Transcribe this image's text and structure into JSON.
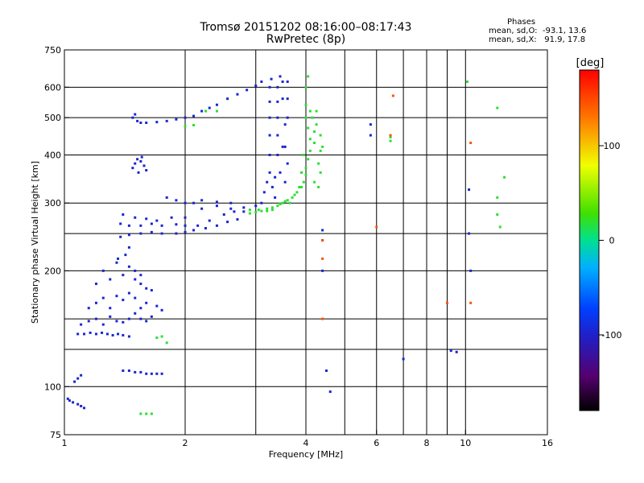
{
  "title": "Tromsø 20151202 08:16:00–08:17:43",
  "subtitle": "RwPretec (8p)",
  "stats": {
    "heading": "Phases",
    "line1": "mean, sd,O:  -93.1, 13.6",
    "line2": "mean, sd,X:   91.9, 17.8"
  },
  "chart_data": {
    "type": "scatter",
    "xlabel": "Frequency [MHz]",
    "ylabel": "Stationary phase Virtual Height [km]",
    "x_scale": "log",
    "y_scale": "log",
    "xlim": [
      1,
      16
    ],
    "ylim": [
      75,
      750
    ],
    "x_ticks": [
      {
        "value": 1,
        "label": "1"
      },
      {
        "value": 2,
        "label": "2"
      },
      {
        "value": 4,
        "label": "4"
      },
      {
        "value": 6,
        "label": "6"
      },
      {
        "value": 8,
        "label": "8"
      },
      {
        "value": 10,
        "label": "10"
      },
      {
        "value": 16,
        "label": "16"
      }
    ],
    "x_grid": [
      2,
      3,
      4,
      5,
      6,
      7,
      8,
      9,
      10
    ],
    "y_ticks": [
      {
        "value": 75,
        "label": "75"
      },
      {
        "value": 100,
        "label": "100"
      },
      {
        "value": 200,
        "label": "200"
      },
      {
        "value": 300,
        "label": "300"
      },
      {
        "value": 400,
        "label": "400"
      },
      {
        "value": 500,
        "label": "500"
      },
      {
        "value": 600,
        "label": "600"
      },
      {
        "value": 750,
        "label": "750"
      }
    ],
    "y_grid": [
      100,
      125,
      150,
      200,
      250,
      300,
      400,
      500,
      600
    ],
    "colorbar": {
      "label": "[deg]",
      "range": [
        -180,
        180
      ],
      "ticks": [
        {
          "value": 100,
          "label": "100"
        },
        {
          "value": 0,
          "label": "0"
        },
        {
          "value": -100,
          "label": "-100"
        }
      ]
    },
    "series": [
      {
        "phase": -95,
        "points": [
          [
            1.02,
            93
          ],
          [
            1.03,
            92
          ],
          [
            1.05,
            91
          ],
          [
            1.08,
            90
          ],
          [
            1.1,
            89
          ],
          [
            1.12,
            88
          ],
          [
            1.06,
            103
          ],
          [
            1.08,
            105
          ],
          [
            1.1,
            107
          ],
          [
            1.08,
            137
          ],
          [
            1.12,
            137
          ],
          [
            1.16,
            138
          ],
          [
            1.2,
            137
          ],
          [
            1.24,
            138
          ],
          [
            1.28,
            137
          ],
          [
            1.32,
            136
          ],
          [
            1.36,
            137
          ],
          [
            1.4,
            136
          ],
          [
            1.45,
            135
          ],
          [
            1.1,
            145
          ],
          [
            1.15,
            148
          ],
          [
            1.2,
            150
          ],
          [
            1.25,
            145
          ],
          [
            1.3,
            152
          ],
          [
            1.35,
            148
          ],
          [
            1.4,
            147
          ],
          [
            1.45,
            150
          ],
          [
            1.5,
            155
          ],
          [
            1.55,
            150
          ],
          [
            1.6,
            148
          ],
          [
            1.65,
            152
          ],
          [
            1.15,
            160
          ],
          [
            1.2,
            165
          ],
          [
            1.25,
            170
          ],
          [
            1.3,
            160
          ],
          [
            1.35,
            172
          ],
          [
            1.4,
            168
          ],
          [
            1.45,
            175
          ],
          [
            1.5,
            170
          ],
          [
            1.55,
            160
          ],
          [
            1.6,
            165
          ],
          [
            1.7,
            162
          ],
          [
            1.75,
            158
          ],
          [
            1.2,
            185
          ],
          [
            1.25,
            200
          ],
          [
            1.3,
            190
          ],
          [
            1.35,
            210
          ],
          [
            1.4,
            195
          ],
          [
            1.45,
            205
          ],
          [
            1.5,
            190
          ],
          [
            1.55,
            185
          ],
          [
            1.6,
            180
          ],
          [
            1.65,
            178
          ],
          [
            1.36,
            215
          ],
          [
            1.42,
            220
          ],
          [
            1.45,
            230
          ],
          [
            1.5,
            200
          ],
          [
            1.55,
            195
          ],
          [
            1.4,
            110
          ],
          [
            1.45,
            110
          ],
          [
            1.5,
            109
          ],
          [
            1.55,
            109
          ],
          [
            1.6,
            108
          ],
          [
            1.65,
            108
          ],
          [
            1.7,
            108
          ],
          [
            1.75,
            108
          ],
          [
            1.48,
            370
          ],
          [
            1.5,
            380
          ],
          [
            1.52,
            390
          ],
          [
            1.55,
            385
          ],
          [
            1.58,
            375
          ],
          [
            1.6,
            365
          ],
          [
            1.53,
            360
          ],
          [
            1.56,
            395
          ],
          [
            1.48,
            500
          ],
          [
            1.5,
            510
          ],
          [
            1.52,
            490
          ],
          [
            1.55,
            485
          ],
          [
            1.6,
            485
          ],
          [
            1.7,
            487
          ],
          [
            1.8,
            490
          ],
          [
            1.9,
            495
          ],
          [
            2.0,
            500
          ],
          [
            2.1,
            505
          ],
          [
            2.2,
            520
          ],
          [
            2.3,
            530
          ],
          [
            2.4,
            540
          ],
          [
            2.55,
            560
          ],
          [
            2.7,
            575
          ],
          [
            2.85,
            590
          ],
          [
            3.0,
            605
          ],
          [
            3.1,
            620
          ],
          [
            1.38,
            245
          ],
          [
            1.45,
            248
          ],
          [
            1.55,
            250
          ],
          [
            1.65,
            252
          ],
          [
            1.75,
            250
          ],
          [
            1.9,
            250
          ],
          [
            2.0,
            252
          ],
          [
            2.1,
            255
          ],
          [
            2.25,
            258
          ],
          [
            2.4,
            262
          ],
          [
            2.55,
            268
          ],
          [
            2.7,
            272
          ],
          [
            1.38,
            265
          ],
          [
            1.45,
            262
          ],
          [
            1.55,
            262
          ],
          [
            1.65,
            265
          ],
          [
            1.75,
            262
          ],
          [
            1.9,
            264
          ],
          [
            2.0,
            262
          ],
          [
            2.15,
            262
          ],
          [
            2.3,
            270
          ],
          [
            2.5,
            280
          ],
          [
            2.65,
            285
          ],
          [
            1.4,
            280
          ],
          [
            1.5,
            275
          ],
          [
            1.6,
            273
          ],
          [
            1.7,
            270
          ],
          [
            1.85,
            275
          ],
          [
            2.0,
            275
          ],
          [
            2.2,
            290
          ],
          [
            2.4,
            295
          ],
          [
            2.6,
            290
          ],
          [
            2.8,
            285
          ],
          [
            1.8,
            310
          ],
          [
            1.9,
            305
          ],
          [
            2.0,
            300
          ],
          [
            2.1,
            300
          ],
          [
            2.2,
            305
          ],
          [
            2.4,
            302
          ],
          [
            2.6,
            300
          ],
          [
            2.8,
            292
          ],
          [
            3.0,
            295
          ],
          [
            3.1,
            300
          ],
          [
            3.15,
            320
          ],
          [
            3.2,
            340
          ],
          [
            3.25,
            360
          ],
          [
            3.25,
            400
          ],
          [
            3.25,
            450
          ],
          [
            3.25,
            500
          ],
          [
            3.25,
            550
          ],
          [
            3.25,
            600
          ],
          [
            3.28,
            630
          ],
          [
            3.35,
            310
          ],
          [
            3.35,
            350
          ],
          [
            3.4,
            400
          ],
          [
            3.4,
            450
          ],
          [
            3.4,
            500
          ],
          [
            3.4,
            550
          ],
          [
            3.4,
            600
          ],
          [
            3.45,
            640
          ],
          [
            3.5,
            620
          ],
          [
            3.5,
            560
          ],
          [
            3.55,
            480
          ],
          [
            3.55,
            420
          ],
          [
            3.6,
            380
          ],
          [
            3.55,
            340
          ],
          [
            3.6,
            620
          ],
          [
            3.6,
            560
          ],
          [
            3.6,
            500
          ],
          [
            3.5,
            420
          ],
          [
            3.45,
            360
          ],
          [
            3.3,
            330
          ],
          [
            4.4,
            255
          ],
          [
            4.4,
            240
          ],
          [
            4.5,
            110
          ],
          [
            4.6,
            97
          ],
          [
            5.8,
            480
          ],
          [
            5.8,
            450
          ],
          [
            7.0,
            118
          ],
          [
            9.2,
            124
          ],
          [
            9.5,
            123
          ],
          [
            10.2,
            325
          ],
          [
            10.2,
            250
          ],
          [
            10.3,
            200
          ],
          [
            4.4,
            200
          ]
        ]
      },
      {
        "phase": 20,
        "points": [
          [
            2.9,
            282
          ],
          [
            3.0,
            284
          ],
          [
            3.1,
            286
          ],
          [
            3.2,
            290
          ],
          [
            3.3,
            292
          ],
          [
            3.4,
            295
          ],
          [
            3.5,
            300
          ],
          [
            3.6,
            305
          ],
          [
            3.7,
            310
          ],
          [
            3.8,
            320
          ],
          [
            3.9,
            330
          ],
          [
            3.95,
            340
          ],
          [
            4.0,
            355
          ],
          [
            4.0,
            370
          ],
          [
            4.05,
            390
          ],
          [
            4.1,
            410
          ],
          [
            4.1,
            440
          ],
          [
            4.05,
            470
          ],
          [
            4.0,
            500
          ],
          [
            4.0,
            540
          ],
          [
            4.0,
            600
          ],
          [
            4.05,
            640
          ],
          [
            3.65,
            300
          ],
          [
            3.75,
            315
          ],
          [
            3.85,
            330
          ],
          [
            3.9,
            360
          ],
          [
            3.95,
            400
          ],
          [
            4.2,
            430
          ],
          [
            4.2,
            460
          ],
          [
            4.25,
            480
          ],
          [
            4.15,
            500
          ],
          [
            4.1,
            520
          ],
          [
            4.3,
            380
          ],
          [
            4.35,
            360
          ],
          [
            4.2,
            340
          ],
          [
            4.3,
            330
          ],
          [
            4.35,
            410
          ],
          [
            4.4,
            420
          ],
          [
            4.35,
            450
          ],
          [
            4.25,
            520
          ],
          [
            2.9,
            288
          ],
          [
            3.05,
            288
          ],
          [
            3.2,
            286
          ],
          [
            3.3,
            288
          ],
          [
            3.45,
            298
          ],
          [
            3.55,
            303
          ],
          [
            2.0,
            475
          ],
          [
            2.1,
            478
          ],
          [
            2.25,
            520
          ],
          [
            2.4,
            520
          ],
          [
            1.75,
            135
          ],
          [
            1.7,
            134
          ],
          [
            1.8,
            130
          ],
          [
            6.5,
            435
          ],
          [
            6.5,
            445
          ],
          [
            10.1,
            620
          ],
          [
            12.0,
            530
          ],
          [
            12.0,
            310
          ],
          [
            12.2,
            260
          ],
          [
            12.0,
            280
          ],
          [
            12.5,
            350
          ],
          [
            1.55,
            85
          ],
          [
            1.6,
            85
          ],
          [
            1.65,
            85
          ]
        ]
      },
      {
        "phase": 145,
        "points": [
          [
            6.6,
            570
          ],
          [
            6.5,
            450
          ],
          [
            6.0,
            260
          ],
          [
            4.4,
            215
          ],
          [
            4.4,
            150
          ],
          [
            4.4,
            240
          ],
          [
            9.0,
            165
          ],
          [
            10.3,
            165
          ],
          [
            10.3,
            430
          ]
        ]
      }
    ]
  }
}
